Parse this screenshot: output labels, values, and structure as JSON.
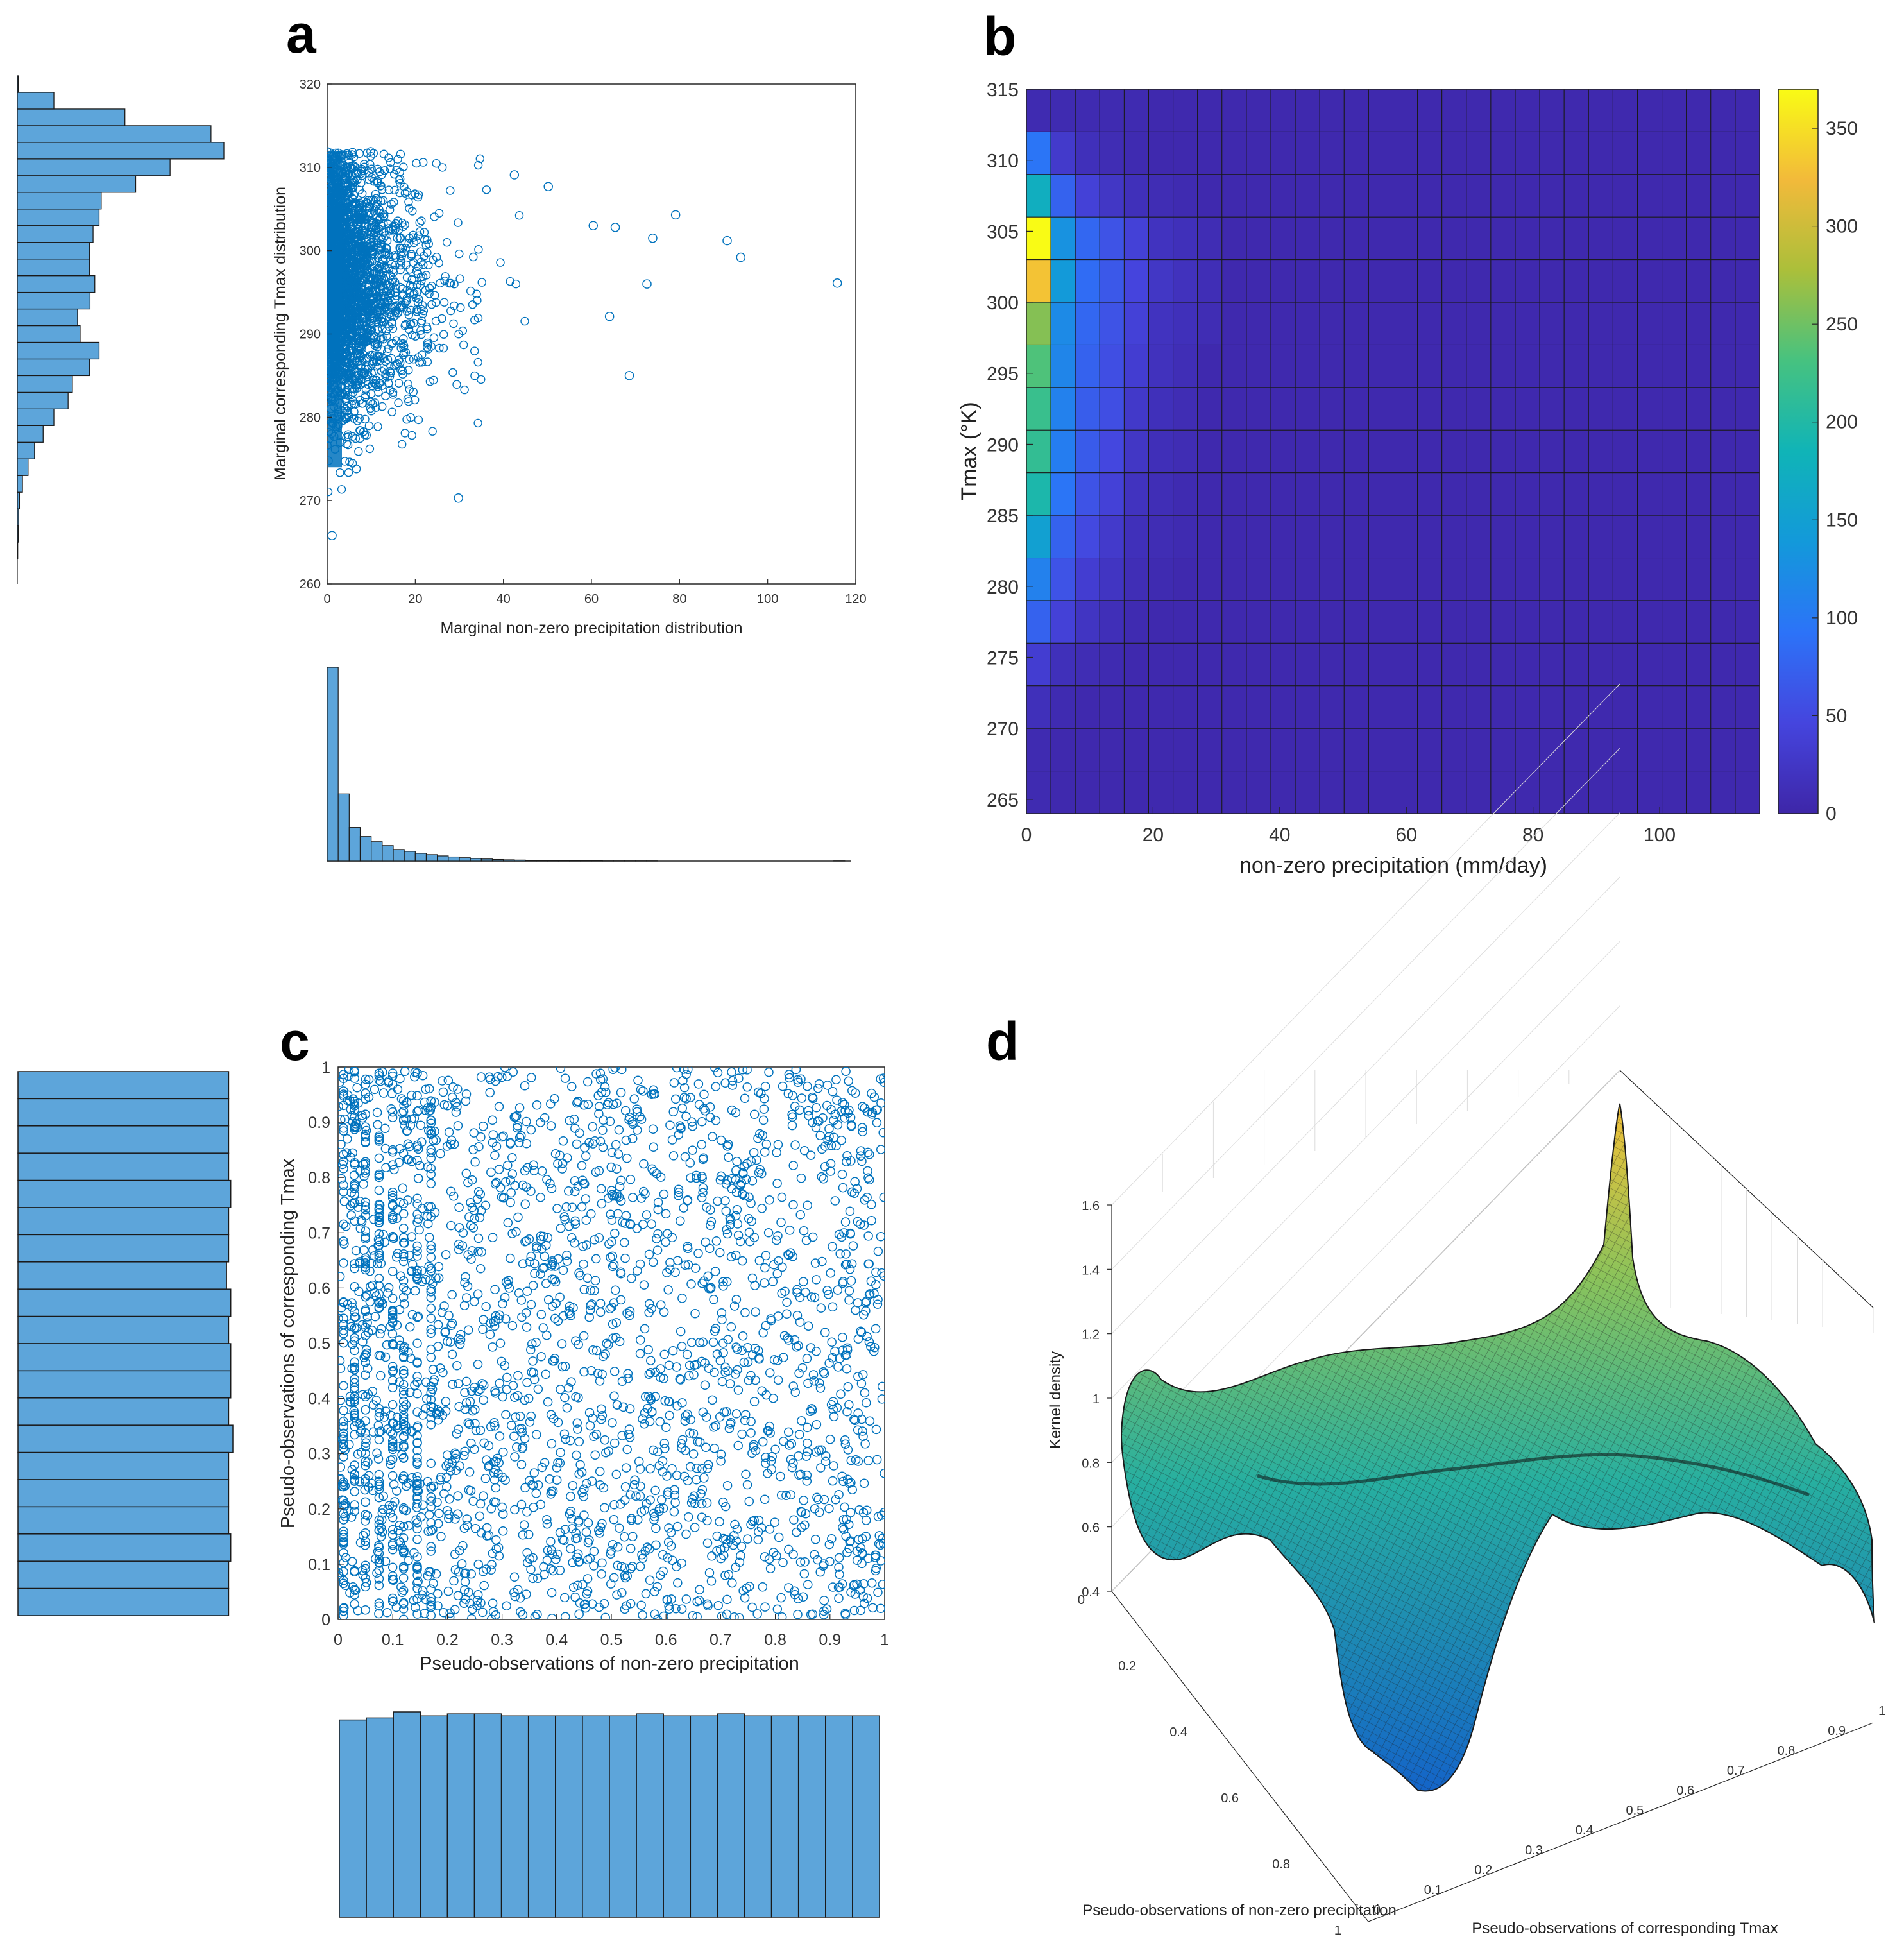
{
  "colors": {
    "marker": "#0072BD",
    "bar_fill": "#5DA5DA",
    "bar_edge": "#1a1a1a",
    "axis": "#262626",
    "grid": "#dcdcdc",
    "heat_low": "#3E26A8",
    "heat_high": "#F9FB15"
  },
  "chart_data": [
    {
      "panel": "a",
      "type": "scatter",
      "title": "",
      "xlabel": "Marginal non-zero precipitation distribution",
      "ylabel": "Marginal corresponding Tmax distribution",
      "xlim": [
        0,
        120
      ],
      "ylim": [
        260,
        320
      ],
      "xticks": [
        "0",
        "20",
        "40",
        "60",
        "80",
        "100",
        "120"
      ],
      "yticks": [
        "260",
        "270",
        "280",
        "290",
        "300",
        "310",
        "320"
      ],
      "marker": "open circle",
      "outlier_points": [
        {
          "x": 115.8,
          "y": 296.1
        },
        {
          "x": 93.9,
          "y": 299.2
        },
        {
          "x": 90.8,
          "y": 301.2
        },
        {
          "x": 79.1,
          "y": 304.3
        },
        {
          "x": 73.9,
          "y": 301.5
        },
        {
          "x": 72.6,
          "y": 296.0
        },
        {
          "x": 68.6,
          "y": 285.0
        },
        {
          "x": 65.4,
          "y": 302.8
        },
        {
          "x": 64.1,
          "y": 292.1
        },
        {
          "x": 60.4,
          "y": 303.0
        },
        {
          "x": 50.2,
          "y": 307.7
        },
        {
          "x": 42.5,
          "y": 309.1
        },
        {
          "x": 29.8,
          "y": 270.3
        },
        {
          "x": 1.1,
          "y": 265.8
        }
      ],
      "marginal_y_histogram": {
        "orientation": "horizontal",
        "bin_start": 263,
        "bin_width": 2,
        "counts": [
          1,
          2,
          3,
          5,
          12,
          25,
          40,
          60,
          85,
          118,
          128,
          168,
          190,
          146,
          140,
          169,
          180,
          168,
          168,
          176,
          190,
          195,
          275,
          355,
          480,
          450,
          250,
          85,
          2
        ]
      },
      "marginal_x_histogram": {
        "orientation": "vertical",
        "bin_start": 0,
        "bin_width": 2.5,
        "counts": [
          1500,
          520,
          260,
          190,
          150,
          120,
          90,
          75,
          60,
          50,
          40,
          32,
          26,
          20,
          16,
          12,
          10,
          8,
          6,
          5,
          4,
          3,
          3,
          2,
          2,
          1,
          1,
          1,
          1,
          1,
          0,
          0,
          0,
          0,
          0,
          0,
          0,
          0,
          0,
          0,
          0,
          0,
          0,
          0,
          0,
          0,
          1
        ]
      }
    },
    {
      "panel": "b",
      "type": "heatmap",
      "title": "",
      "xlabel": "non-zero precipitation (mm/day)",
      "ylabel": "Tmax (°K)",
      "xlim": [
        0,
        115.8
      ],
      "ylim": [
        264,
        315
      ],
      "xticks": [
        "0",
        "20",
        "40",
        "60",
        "80",
        "100"
      ],
      "yticks": [
        "265",
        "270",
        "275",
        "280",
        "285",
        "290",
        "295",
        "300",
        "305",
        "310",
        "315"
      ],
      "colorbar": {
        "min": 0,
        "max": 370,
        "ticks": [
          "0",
          "50",
          "100",
          "150",
          "200",
          "250",
          "300",
          "350"
        ],
        "colormap": "parula"
      },
      "x_bins": 30,
      "y_bin_edges": [
        264,
        267,
        270,
        273,
        276,
        279,
        282,
        285,
        288,
        291,
        294,
        297,
        300,
        303,
        306,
        309,
        312,
        315
      ],
      "rows_top_to_bottom": [
        [
          8,
          8,
          8,
          8,
          8
        ],
        [
          95,
          30,
          15,
          10,
          8
        ],
        [
          175,
          75,
          40,
          25,
          15,
          10,
          8
        ],
        [
          370,
          130,
          80,
          60,
          40,
          20,
          15,
          10
        ],
        [
          330,
          140,
          85,
          65,
          45,
          25,
          18,
          12
        ],
        [
          260,
          120,
          80,
          60,
          40,
          20,
          15,
          10
        ],
        [
          235,
          115,
          75,
          55,
          35,
          18,
          12
        ],
        [
          220,
          110,
          70,
          55,
          28,
          15,
          10
        ],
        [
          215,
          105,
          68,
          48,
          25,
          14,
          10
        ],
        [
          195,
          95,
          60,
          40,
          20,
          12,
          8
        ],
        [
          150,
          75,
          50,
          30,
          15,
          10,
          8
        ],
        [
          110,
          60,
          35,
          22,
          12,
          8
        ],
        [
          75,
          40,
          22,
          14,
          8
        ],
        [
          35,
          15,
          10,
          8
        ],
        [
          15,
          8
        ],
        [
          8
        ],
        [
          8
        ]
      ]
    },
    {
      "panel": "c",
      "type": "scatter",
      "title": "",
      "xlabel": "Pseudo-observations of non-zero precipitation",
      "ylabel": "Pseudo-observations of corresponding Tmax",
      "xlim": [
        0,
        1
      ],
      "ylim": [
        0,
        1
      ],
      "xticks": [
        "0",
        "0.1",
        "0.2",
        "0.3",
        "0.4",
        "0.5",
        "0.6",
        "0.7",
        "0.8",
        "0.9",
        "1"
      ],
      "yticks": [
        "0",
        "0.1",
        "0.2",
        "0.3",
        "0.4",
        "0.5",
        "0.6",
        "0.7",
        "0.8",
        "0.9",
        "1"
      ],
      "marker": "open circle",
      "distribution_note": "approximately uniform on the unit square",
      "marginal_y_histogram": {
        "orientation": "horizontal",
        "bins": 20,
        "counts": [
          100,
          100,
          100,
          100,
          101,
          100,
          100,
          99,
          101,
          100,
          101,
          101,
          100,
          102,
          100,
          100,
          100,
          101,
          100,
          100
        ]
      },
      "marginal_x_histogram": {
        "orientation": "vertical",
        "bins": 20,
        "counts": [
          98,
          99,
          102,
          100,
          101,
          101,
          100,
          100,
          100,
          100,
          100,
          101,
          100,
          100,
          101,
          100,
          100,
          100,
          100,
          100
        ]
      }
    },
    {
      "panel": "d",
      "type": "surface",
      "title": "",
      "xlabel": "Pseudo-observations of non-zero precipitation",
      "ylabel": "Pseudo-observations of corresponding Tmax",
      "zlabel": "Kernel density",
      "zlim": [
        0.4,
        1.6
      ],
      "zticks": [
        "0.4",
        "0.6",
        "0.8",
        "1",
        "1.2",
        "1.4",
        "1.6"
      ],
      "xticks": [
        "0",
        "0.2",
        "0.4",
        "0.6",
        "0.8",
        "1"
      ],
      "yticks": [
        "0",
        "0.1",
        "0.2",
        "0.3",
        "0.4",
        "0.5",
        "0.6",
        "0.7",
        "0.8",
        "0.9",
        "1"
      ],
      "colormap": "parula",
      "features": {
        "max_density": 1.55,
        "max_location": "corner (precipitation 0, Tmax 1)",
        "min_density": 0.35
      }
    }
  ],
  "panels": {
    "a": "a",
    "b": "b",
    "c": "c",
    "d": "d"
  }
}
